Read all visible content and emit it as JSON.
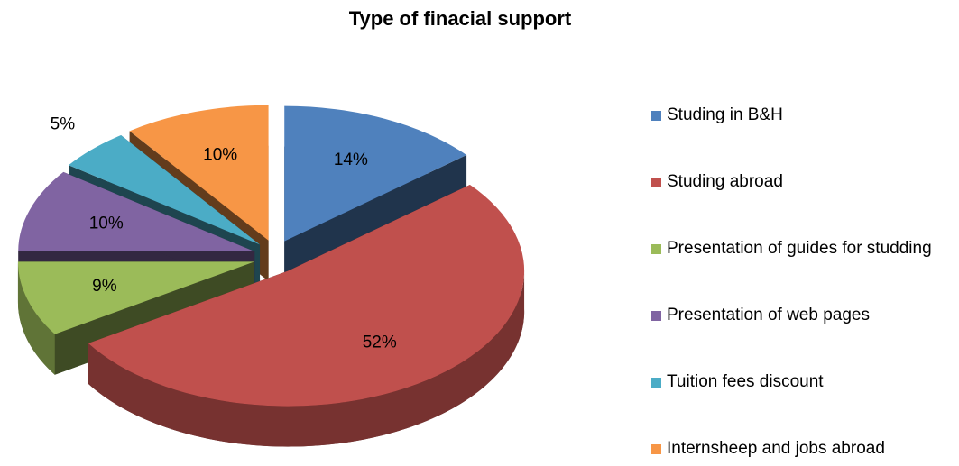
{
  "chart_data": {
    "type": "pie",
    "title": "Type of finacial support",
    "categories": [
      "Studing in B&H",
      "Studing abroad",
      "Presentation of guides for studding",
      "Presentation of web pages",
      "Tuition fees discount",
      "Internsheep and jobs abroad"
    ],
    "values": [
      14,
      52,
      9,
      10,
      5,
      10
    ],
    "value_labels": [
      "14%",
      "52%",
      "9%",
      "10%",
      "5%",
      "10%"
    ],
    "colors": [
      "#4f81bd",
      "#c0504d",
      "#9bbb59",
      "#8064a2",
      "#4bacc6",
      "#f79646"
    ],
    "legend": "right"
  }
}
